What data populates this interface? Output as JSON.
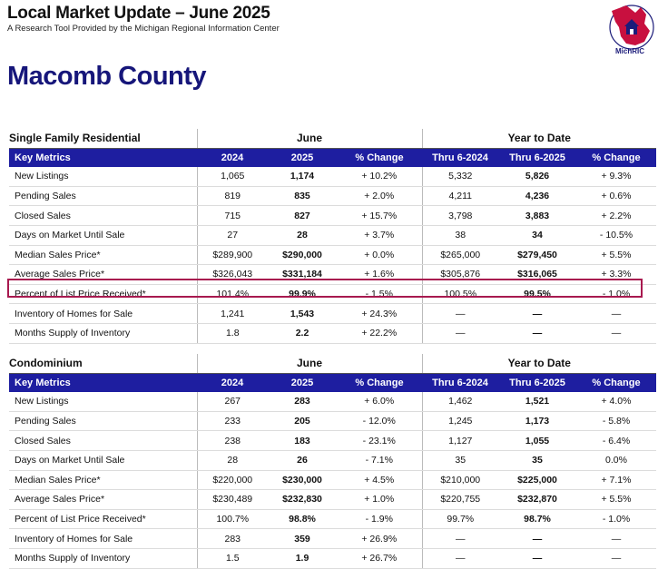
{
  "header": {
    "title": "Local Market Update – June 2025",
    "subtitle": "A Research Tool Provided by the Michigan Regional Information Center",
    "county": "Macomb County",
    "logo_text": "MichRIC",
    "logo_ring_text": "Michigan Regional Information Center"
  },
  "colors": {
    "header_bg": "#1e1ea0",
    "county_text": "#16167a",
    "highlight_border": "#a8194f",
    "logo_red": "#c8103f"
  },
  "columns": [
    "Key Metrics",
    "2024",
    "2025",
    "% Change",
    "Thru 6-2024",
    "Thru 6-2025",
    "% Change"
  ],
  "group_labels": {
    "month": "June",
    "ytd": "Year to Date"
  },
  "sections": [
    {
      "name": "Single Family Residential",
      "rows": [
        [
          "New Listings",
          "1,065",
          "1,174",
          "+ 10.2%",
          "5,332",
          "5,826",
          "+ 9.3%"
        ],
        [
          "Pending Sales",
          "819",
          "835",
          "+ 2.0%",
          "4,211",
          "4,236",
          "+ 0.6%"
        ],
        [
          "Closed Sales",
          "715",
          "827",
          "+ 15.7%",
          "3,798",
          "3,883",
          "+ 2.2%"
        ],
        [
          "Days on Market Until Sale",
          "27",
          "28",
          "+ 3.7%",
          "38",
          "34",
          "- 10.5%"
        ],
        [
          "Median Sales Price*",
          "$289,900",
          "$290,000",
          "+ 0.0%",
          "$265,000",
          "$279,450",
          "+ 5.5%"
        ],
        [
          "Average Sales Price*",
          "$326,043",
          "$331,184",
          "+ 1.6%",
          "$305,876",
          "$316,065",
          "+ 3.3%"
        ],
        [
          "Percent of List Price Received*",
          "101.4%",
          "99.9%",
          "- 1.5%",
          "100.5%",
          "99.5%",
          "- 1.0%"
        ],
        [
          "Inventory of Homes for Sale",
          "1,241",
          "1,543",
          "+ 24.3%",
          "—",
          "—",
          "—"
        ],
        [
          "Months Supply of Inventory",
          "1.8",
          "2.2",
          "+ 22.2%",
          "—",
          "—",
          "—"
        ]
      ]
    },
    {
      "name": "Condominium",
      "rows": [
        [
          "New Listings",
          "267",
          "283",
          "+ 6.0%",
          "1,462",
          "1,521",
          "+ 4.0%"
        ],
        [
          "Pending Sales",
          "233",
          "205",
          "- 12.0%",
          "1,245",
          "1,173",
          "- 5.8%"
        ],
        [
          "Closed Sales",
          "238",
          "183",
          "- 23.1%",
          "1,127",
          "1,055",
          "- 6.4%"
        ],
        [
          "Days on Market Until Sale",
          "28",
          "26",
          "- 7.1%",
          "35",
          "35",
          "0.0%"
        ],
        [
          "Median Sales Price*",
          "$220,000",
          "$230,000",
          "+ 4.5%",
          "$210,000",
          "$225,000",
          "+ 7.1%"
        ],
        [
          "Average Sales Price*",
          "$230,489",
          "$232,830",
          "+ 1.0%",
          "$220,755",
          "$232,870",
          "+ 5.5%"
        ],
        [
          "Percent of List Price Received*",
          "100.7%",
          "98.8%",
          "- 1.9%",
          "99.7%",
          "98.7%",
          "- 1.0%"
        ],
        [
          "Inventory of Homes for Sale",
          "283",
          "359",
          "+ 26.9%",
          "—",
          "—",
          "—"
        ],
        [
          "Months Supply of Inventory",
          "1.5",
          "1.9",
          "+ 26.7%",
          "—",
          "—",
          "—"
        ]
      ]
    }
  ]
}
